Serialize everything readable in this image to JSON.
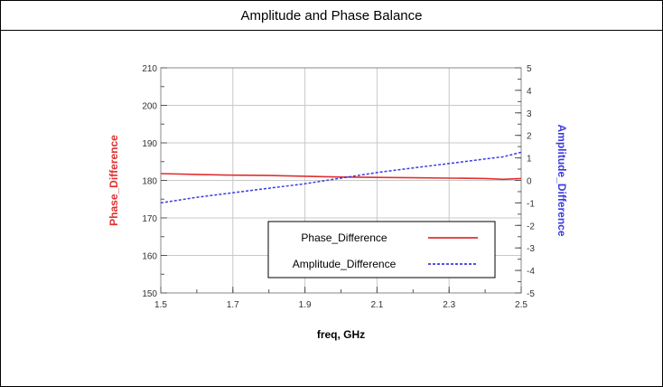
{
  "panel": {
    "title": "Amplitude and Phase Balance"
  },
  "chart_data": {
    "type": "line",
    "xlabel": "freq, GHz",
    "ylabel_left": "Phase_Difference",
    "ylabel_right": "Amplitude_Difference",
    "xlim": [
      1.5,
      2.5
    ],
    "ylim_left": [
      150,
      210
    ],
    "ylim_right": [
      -5,
      5
    ],
    "x_ticks": [
      "1.5",
      "1.7",
      "1.9",
      "2.1",
      "2.3",
      "2.5"
    ],
    "x_tick_values": [
      1.5,
      1.7,
      1.9,
      2.1,
      2.3,
      2.5
    ],
    "y_left_ticks": [
      "150",
      "160",
      "170",
      "180",
      "190",
      "200",
      "210"
    ],
    "y_left_tick_values": [
      150,
      160,
      170,
      180,
      190,
      200,
      210
    ],
    "y_right_ticks": [
      "-5",
      "-4",
      "-3",
      "-2",
      "-1",
      "0",
      "1",
      "2",
      "3",
      "4",
      "5"
    ],
    "y_right_tick_values": [
      -5,
      -4,
      -3,
      -2,
      -1,
      0,
      1,
      2,
      3,
      4,
      5
    ],
    "grid": true,
    "legend_position": "bottom-right",
    "x": [
      1.5,
      1.6,
      1.7,
      1.8,
      1.9,
      2.0,
      2.1,
      2.2,
      2.3,
      2.4,
      2.45,
      2.5
    ],
    "series": [
      {
        "name": "Phase_Difference",
        "axis": "left",
        "color": "#e03030",
        "style": "solid",
        "values": [
          181.8,
          181.6,
          181.4,
          181.3,
          181.1,
          180.9,
          180.8,
          180.7,
          180.6,
          180.5,
          180.3,
          180.5
        ]
      },
      {
        "name": "Amplitude_Difference",
        "axis": "right",
        "color": "#3a3ae0",
        "style": "dashed",
        "values": [
          -1.0,
          -0.75,
          -0.55,
          -0.35,
          -0.15,
          0.1,
          0.35,
          0.55,
          0.75,
          0.95,
          1.05,
          1.25
        ]
      }
    ]
  }
}
